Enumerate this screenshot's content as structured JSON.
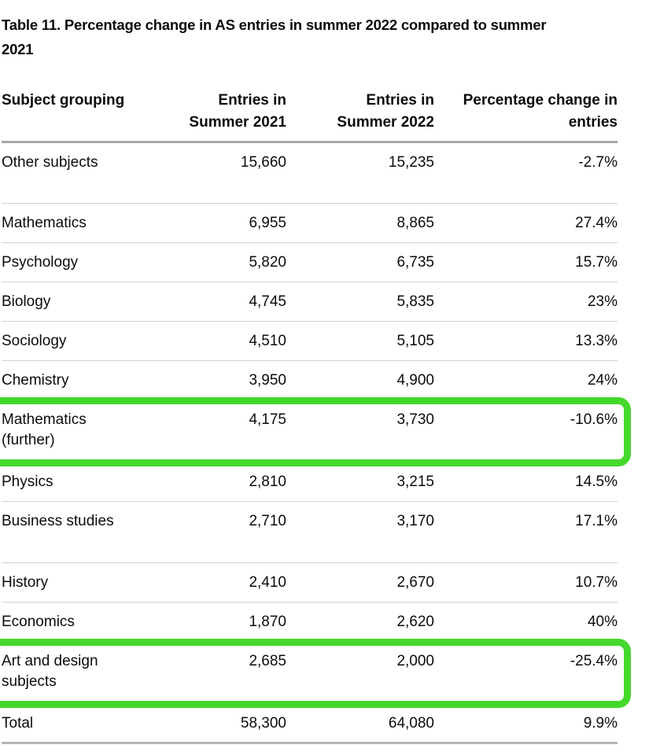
{
  "page": {
    "title_line1": "Table 11. Percentage change in AS entries in summer 2022 compared to summer",
    "title_line2": "2021"
  },
  "colors": {
    "text": "#0b0c0c",
    "header_rule": "#a6a8ab",
    "row_rule": "#d0d2d4",
    "highlight_green": "#45d82c"
  },
  "table": {
    "headers": {
      "subject": "Subject grouping",
      "entries_2021_line1": "Entries in",
      "entries_2021_line2": "Summer 2021",
      "entries_2022_line1": "Entries in",
      "entries_2022_line2": "Summer 2022",
      "change_line1": "Percentage change in",
      "change_line2": "entries"
    },
    "rows": [
      {
        "subject": "Other subjects",
        "entries_2021": "15,660",
        "entries_2022": "15,235",
        "change": "-2.7%"
      },
      {
        "subject": "Mathematics",
        "entries_2021": "6,955",
        "entries_2022": "8,865",
        "change": "27.4%"
      },
      {
        "subject": "Psychology",
        "entries_2021": "5,820",
        "entries_2022": "6,735",
        "change": "15.7%"
      },
      {
        "subject": "Biology",
        "entries_2021": "4,745",
        "entries_2022": "5,835",
        "change": "23%"
      },
      {
        "subject": "Sociology",
        "entries_2021": "4,510",
        "entries_2022": "5,105",
        "change": "13.3%"
      },
      {
        "subject": "Chemistry",
        "entries_2021": "3,950",
        "entries_2022": "4,900",
        "change": "24%"
      },
      {
        "subject": "Mathematics (further)",
        "entries_2021": "4,175",
        "entries_2022": "3,730",
        "change": "-10.6%"
      },
      {
        "subject": "Physics",
        "entries_2021": "2,810",
        "entries_2022": "3,215",
        "change": "14.5%"
      },
      {
        "subject": "Business studies",
        "entries_2021": "2,710",
        "entries_2022": "3,170",
        "change": "17.1%"
      },
      {
        "subject": "History",
        "entries_2021": "2,410",
        "entries_2022": "2,670",
        "change": "10.7%"
      },
      {
        "subject": "Economics",
        "entries_2021": "1,870",
        "entries_2022": "2,620",
        "change": "40%"
      },
      {
        "subject": "Art and design subjects",
        "entries_2021": "2,685",
        "entries_2022": "2,000",
        "change": "-25.4%"
      },
      {
        "subject": "Total",
        "entries_2021": "58,300",
        "entries_2022": "64,080",
        "change": "9.9%"
      }
    ]
  },
  "highlight": {
    "color": "#45d82c",
    "highlighted_rows": [
      "Mathematics (further)",
      "Art and design subjects"
    ]
  }
}
